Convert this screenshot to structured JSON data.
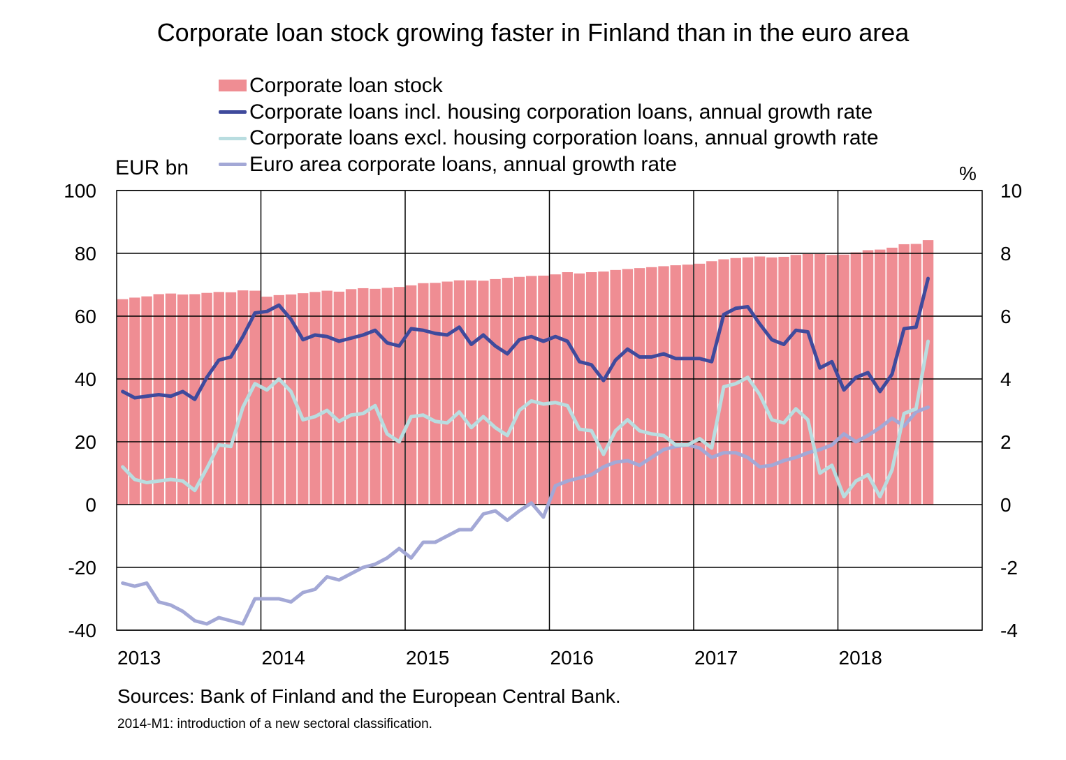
{
  "chart_data": {
    "type": "bar+line",
    "title": "Corporate loan stock growing faster in Finland than in the euro area",
    "left_axis": {
      "unit_label": "EUR bn",
      "ylim": [
        -40,
        100
      ],
      "ticks": [
        "100",
        "80",
        "60",
        "40",
        "20",
        "0",
        "-20",
        "-40"
      ]
    },
    "right_axis": {
      "unit_label": "%",
      "ylim": [
        -4,
        10
      ],
      "ticks": [
        "10",
        "8",
        "6",
        "4",
        "2",
        "0",
        "-2",
        "-4"
      ]
    },
    "x_axis": {
      "start": "2013-01",
      "months": 68,
      "tick_labels": [
        "2013",
        "2014",
        "2015",
        "2016",
        "2017",
        "2018"
      ]
    },
    "grid": true,
    "legend_position": "top",
    "series": [
      {
        "name": "Corporate loan stock",
        "type": "bar",
        "axis": "left",
        "color": "#ef8d93",
        "values": [
          65.4,
          65.9,
          66.3,
          67.0,
          67.2,
          66.9,
          67.0,
          67.4,
          67.7,
          67.6,
          68.2,
          68.1,
          66.2,
          66.7,
          66.9,
          67.3,
          67.7,
          68.1,
          67.8,
          68.6,
          68.9,
          68.7,
          69.0,
          69.3,
          69.8,
          70.5,
          70.6,
          71.0,
          71.4,
          71.4,
          71.3,
          71.8,
          72.2,
          72.5,
          72.8,
          72.9,
          73.3,
          74.0,
          73.6,
          74.0,
          74.2,
          74.7,
          75.0,
          75.3,
          75.6,
          75.9,
          76.2,
          76.4,
          76.7,
          77.5,
          78.1,
          78.5,
          78.7,
          79.0,
          78.7,
          78.9,
          79.5,
          79.8,
          79.8,
          79.5,
          79.6,
          80.3,
          81.0,
          81.2,
          81.8,
          82.9,
          83.0,
          84.2
        ]
      },
      {
        "name": "Corporate loans incl. housing corporation loans, annual growth rate",
        "type": "line",
        "axis": "right",
        "color": "#3f4a9c",
        "values": [
          3.6,
          3.4,
          3.45,
          3.5,
          3.45,
          3.6,
          3.35,
          4.05,
          4.6,
          4.7,
          5.35,
          6.1,
          6.15,
          6.35,
          5.9,
          5.25,
          5.4,
          5.35,
          5.2,
          5.3,
          5.4,
          5.55,
          5.15,
          5.05,
          5.6,
          5.55,
          5.45,
          5.4,
          5.65,
          5.1,
          5.4,
          5.05,
          4.8,
          5.25,
          5.35,
          5.2,
          5.35,
          5.2,
          4.55,
          4.45,
          3.95,
          4.6,
          4.95,
          4.7,
          4.7,
          4.8,
          4.65,
          4.65,
          4.65,
          4.55,
          6.05,
          6.25,
          6.3,
          5.75,
          5.25,
          5.1,
          5.55,
          5.5,
          4.35,
          4.55,
          3.65,
          4.05,
          4.2,
          3.6,
          4.15,
          5.6,
          5.65,
          7.2
        ]
      },
      {
        "name": "Corporate loans excl. housing corporation loans, annual growth rate",
        "type": "line",
        "axis": "right",
        "color": "#b9dde0",
        "values": [
          1.2,
          0.8,
          0.7,
          0.75,
          0.8,
          0.75,
          0.45,
          1.15,
          1.9,
          1.85,
          3.1,
          3.85,
          3.65,
          4.0,
          3.6,
          2.7,
          2.8,
          3.0,
          2.65,
          2.85,
          2.9,
          3.15,
          2.25,
          2.0,
          2.8,
          2.85,
          2.65,
          2.6,
          2.95,
          2.45,
          2.8,
          2.45,
          2.2,
          3.0,
          3.3,
          3.2,
          3.25,
          3.15,
          2.4,
          2.35,
          1.6,
          2.35,
          2.7,
          2.35,
          2.25,
          2.2,
          1.9,
          1.9,
          2.1,
          1.8,
          3.75,
          3.85,
          4.05,
          3.5,
          2.7,
          2.6,
          3.05,
          2.7,
          1.0,
          1.25,
          0.25,
          0.75,
          0.95,
          0.25,
          1.1,
          2.9,
          3.05,
          5.2
        ]
      },
      {
        "name": "Euro area corporate loans, annual growth rate",
        "type": "line",
        "axis": "right",
        "color": "#a3a8d6",
        "values": [
          -2.5,
          -2.6,
          -2.5,
          -3.1,
          -3.2,
          -3.4,
          -3.7,
          -3.8,
          -3.6,
          -3.7,
          -3.8,
          -3.0,
          -3.0,
          -3.0,
          -3.1,
          -2.8,
          -2.7,
          -2.3,
          -2.4,
          -2.2,
          -2.0,
          -1.9,
          -1.7,
          -1.4,
          -1.7,
          -1.2,
          -1.2,
          -1.0,
          -0.8,
          -0.8,
          -0.3,
          -0.2,
          -0.5,
          -0.2,
          0.05,
          -0.4,
          0.6,
          0.75,
          0.85,
          0.95,
          1.2,
          1.35,
          1.4,
          1.25,
          1.5,
          1.75,
          1.85,
          1.9,
          1.8,
          1.5,
          1.65,
          1.65,
          1.5,
          1.2,
          1.25,
          1.4,
          1.5,
          1.65,
          1.75,
          1.9,
          2.25,
          2.0,
          2.2,
          2.45,
          2.75,
          2.5,
          2.95,
          3.1
        ]
      }
    ]
  },
  "footer": {
    "sources": "Sources: Bank of Finland and the European Central Bank.",
    "note": "2014-M1: introduction of a new sectoral classification."
  }
}
